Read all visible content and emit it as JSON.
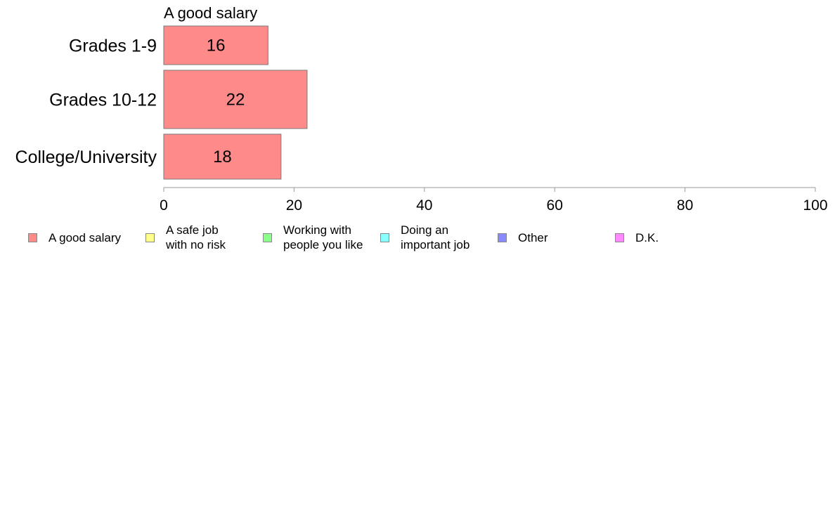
{
  "chart_data": {
    "type": "bar",
    "orientation": "horizontal",
    "title": "A good salary",
    "categories": [
      "Grades 1-9",
      "Grades 10-12",
      "College/University"
    ],
    "series": [
      {
        "name": "A good salary",
        "values": [
          16,
          22,
          18
        ],
        "color": "#ff8a8a"
      }
    ],
    "data_labels": [
      "16",
      "22",
      "18"
    ],
    "xlim": [
      0,
      100
    ],
    "xticks": [
      0,
      20,
      40,
      60,
      80,
      100
    ],
    "xtick_labels": [
      "0",
      "20",
      "40",
      "60",
      "80",
      "100"
    ],
    "grid": false,
    "legend_position": "bottom",
    "legend": [
      {
        "label": "A good salary",
        "color": "#ff8a8a"
      },
      {
        "label": "A safe job\nwith no risk",
        "color": "#ffff8a"
      },
      {
        "label": "Working with\npeople you like",
        "color": "#8aff8a"
      },
      {
        "label": "Doing an\nimportant job",
        "color": "#8affff"
      },
      {
        "label": "Other",
        "color": "#8a8aff"
      },
      {
        "label": "D.K.",
        "color": "#ff8aff"
      }
    ]
  }
}
